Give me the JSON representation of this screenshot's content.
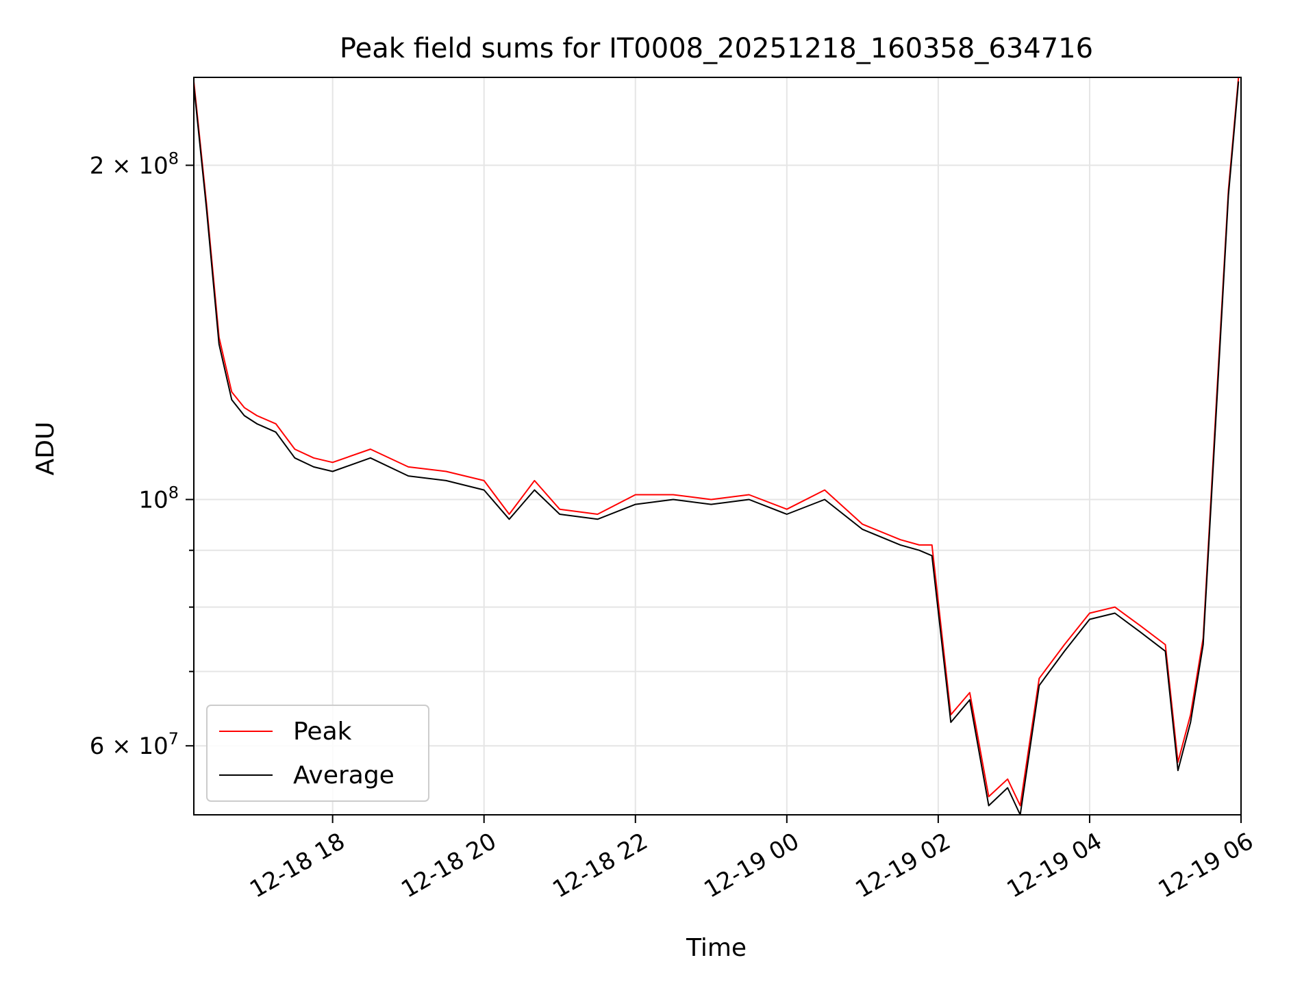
{
  "chart_data": {
    "type": "line",
    "title": "Peak field sums for IT0008_20251218_160358_634716",
    "xlabel": "Time",
    "ylabel": "ADU",
    "y_scale": "log",
    "xlim": [
      "2025-12-18 16:10",
      "2025-12-19 06:00"
    ],
    "ylim": [
      52000000,
      240000000
    ],
    "x_ticks": [
      "12-18 18",
      "12-18 20",
      "12-18 22",
      "12-19 00",
      "12-19 02",
      "12-19 04",
      "12-19 06"
    ],
    "y_ticks": [
      {
        "value": 60000000,
        "label": "6 × 10",
        "exp": "7"
      },
      {
        "value": 100000000,
        "label": "10",
        "exp": "8"
      },
      {
        "value": 200000000,
        "label": "2 × 10",
        "exp": "8"
      }
    ],
    "y_minor_ticks": [
      70000000,
      80000000,
      90000000
    ],
    "grid": true,
    "legend": {
      "position": "lower-left",
      "entries": [
        "Peak",
        "Average"
      ]
    },
    "colors": {
      "Peak": "#ff0000",
      "Average": "#000000"
    },
    "series": [
      {
        "name": "Peak",
        "x": [
          "2025-12-18 16:10",
          "2025-12-18 16:20",
          "2025-12-18 16:30",
          "2025-12-18 16:40",
          "2025-12-18 16:50",
          "2025-12-18 17:00",
          "2025-12-18 17:15",
          "2025-12-18 17:30",
          "2025-12-18 17:45",
          "2025-12-18 18:00",
          "2025-12-18 18:30",
          "2025-12-18 19:00",
          "2025-12-18 19:30",
          "2025-12-18 20:00",
          "2025-12-18 20:20",
          "2025-12-18 20:40",
          "2025-12-18 21:00",
          "2025-12-18 21:30",
          "2025-12-18 22:00",
          "2025-12-18 22:30",
          "2025-12-18 23:00",
          "2025-12-18 23:30",
          "2025-12-19 00:00",
          "2025-12-19 00:30",
          "2025-12-19 01:00",
          "2025-12-19 01:30",
          "2025-12-19 01:45",
          "2025-12-19 01:55",
          "2025-12-19 02:10",
          "2025-12-19 02:25",
          "2025-12-19 02:40",
          "2025-12-19 02:55",
          "2025-12-19 03:05",
          "2025-12-19 03:20",
          "2025-12-19 03:40",
          "2025-12-19 04:00",
          "2025-12-19 04:20",
          "2025-12-19 04:40",
          "2025-12-19 05:00",
          "2025-12-19 05:10",
          "2025-12-19 05:20",
          "2025-12-19 05:30",
          "2025-12-19 05:40",
          "2025-12-19 05:50",
          "2025-12-19 05:58"
        ],
        "y": [
          238000000,
          185000000,
          140000000,
          125000000,
          121000000,
          119000000,
          117000000,
          111000000,
          109000000,
          108000000,
          111000000,
          107000000,
          106000000,
          104000000,
          97000000,
          104000000,
          98000000,
          97000000,
          101000000,
          101000000,
          100000000,
          101000000,
          98000000,
          102000000,
          95000000,
          92000000,
          91000000,
          91000000,
          64000000,
          67000000,
          54000000,
          56000000,
          53000000,
          69000000,
          74000000,
          79000000,
          80000000,
          77000000,
          74000000,
          58000000,
          64000000,
          75000000,
          120000000,
          190000000,
          240000000
        ]
      },
      {
        "name": "Average",
        "x": [
          "2025-12-18 16:10",
          "2025-12-18 16:20",
          "2025-12-18 16:30",
          "2025-12-18 16:40",
          "2025-12-18 16:50",
          "2025-12-18 17:00",
          "2025-12-18 17:15",
          "2025-12-18 17:30",
          "2025-12-18 17:45",
          "2025-12-18 18:00",
          "2025-12-18 18:30",
          "2025-12-18 19:00",
          "2025-12-18 19:30",
          "2025-12-18 20:00",
          "2025-12-18 20:20",
          "2025-12-18 20:40",
          "2025-12-18 21:00",
          "2025-12-18 21:30",
          "2025-12-18 22:00",
          "2025-12-18 22:30",
          "2025-12-18 23:00",
          "2025-12-18 23:30",
          "2025-12-19 00:00",
          "2025-12-19 00:30",
          "2025-12-19 01:00",
          "2025-12-19 01:30",
          "2025-12-19 01:45",
          "2025-12-19 01:55",
          "2025-12-19 02:10",
          "2025-12-19 02:25",
          "2025-12-19 02:40",
          "2025-12-19 02:55",
          "2025-12-19 03:05",
          "2025-12-19 03:20",
          "2025-12-19 03:40",
          "2025-12-19 04:00",
          "2025-12-19 04:20",
          "2025-12-19 04:40",
          "2025-12-19 05:00",
          "2025-12-19 05:10",
          "2025-12-19 05:20",
          "2025-12-19 05:30",
          "2025-12-19 05:40",
          "2025-12-19 05:50",
          "2025-12-19 05:58"
        ],
        "y": [
          236000000,
          183000000,
          138000000,
          123000000,
          119000000,
          117000000,
          115000000,
          109000000,
          107000000,
          106000000,
          109000000,
          105000000,
          104000000,
          102000000,
          96000000,
          102000000,
          97000000,
          96000000,
          99000000,
          100000000,
          99000000,
          100000000,
          97000000,
          100000000,
          94000000,
          91000000,
          90000000,
          89000000,
          63000000,
          66000000,
          53000000,
          55000000,
          52000000,
          68000000,
          73000000,
          78000000,
          79000000,
          76000000,
          73000000,
          57000000,
          63000000,
          74000000,
          118000000,
          188000000,
          238000000
        ]
      }
    ]
  }
}
